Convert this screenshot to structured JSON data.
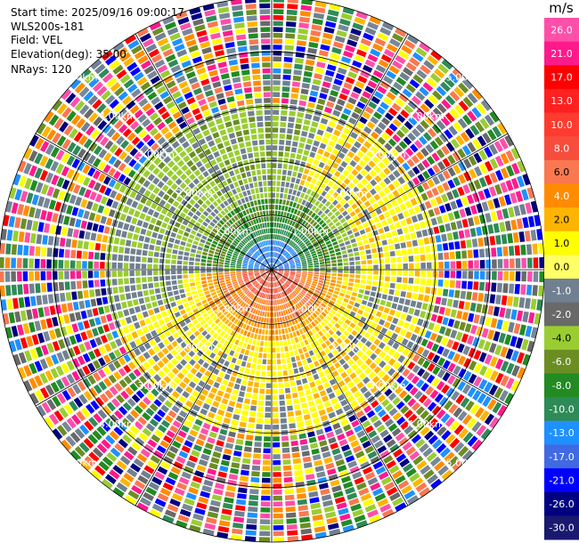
{
  "header": {
    "start_time": "Start time: 2025/09/16 09:00:17",
    "station": "WLS200s-181",
    "field": "Field: VEL",
    "elevation": "Elevation(deg): 35.00",
    "nrays": "NRays: 120"
  },
  "colorbar": {
    "unit": "m/s",
    "ticks": [
      "26.0",
      "21.0",
      "17.0",
      "13.0",
      "10.0",
      "8.0",
      "6.0",
      "4.0",
      "2.0",
      "1.0",
      "0.0",
      "-1.0",
      "-2.0",
      "-4.0",
      "-6.0",
      "-8.0",
      "-10.0",
      "-13.0",
      "-17.0",
      "-21.0",
      "-26.0",
      "-30.0"
    ],
    "colors": [
      "#ff4fa8",
      "#ff1a8c",
      "#ff0000",
      "#ff2020",
      "#ff3b2f",
      "#f84c3c",
      "#fa7850",
      "#ff8c00",
      "#ffb400",
      "#ffff00",
      "#ffff66",
      "#708090",
      "#696969",
      "#9acd32",
      "#6b8e23",
      "#228b22",
      "#2e8b57",
      "#1e90ff",
      "#4169e1",
      "#0000ff",
      "#000080",
      "#191970"
    ]
  },
  "chart_data": {
    "type": "ppi_polar_velocity",
    "field": "VEL",
    "units": "m/s",
    "elevation_deg": 35.0,
    "n_rays": 120,
    "range_max_km": 5.0,
    "range_rings_km": [
      1,
      2,
      3,
      4,
      5
    ],
    "range_labels": [
      "1.00km",
      "2.00km",
      "3.00km",
      "4.00km",
      "5.00km"
    ],
    "spokes_deg": [
      0,
      30,
      60,
      90,
      120,
      150,
      180,
      210,
      240,
      270,
      300,
      330
    ],
    "value_range": [
      -30,
      26
    ],
    "pattern": "near-field velocity dipole: negative (green/blue) to the north within ~1.5 km, positive (yellow/orange/red) to the south within ~1.5 km, noisy multi-color returns beyond ~3 km"
  }
}
